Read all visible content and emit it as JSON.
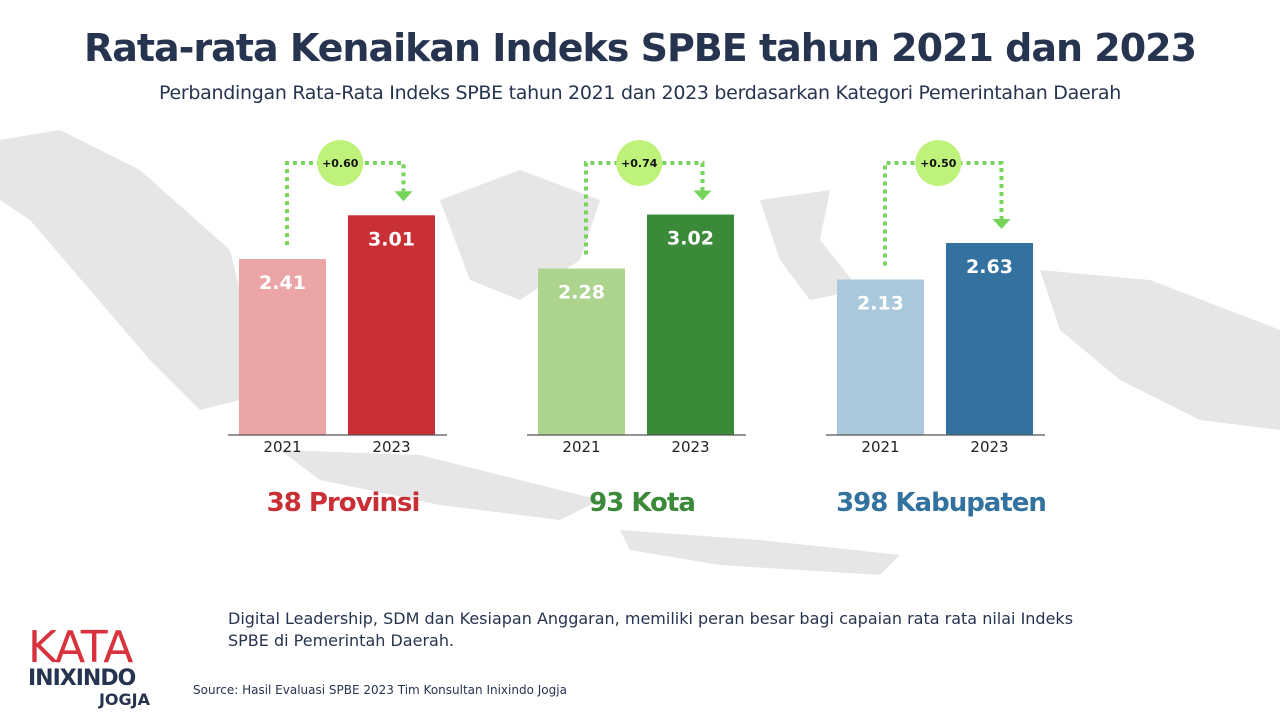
{
  "title": "Rata-rata Kenaikan Indeks SPBE tahun 2021 dan 2023",
  "subtitle": "Perbandingan Rata-Rata Indeks SPBE tahun 2021 dan 2023 berdasarkan Kategori Pemerintahan Daerah",
  "note": "Digital Leadership, SDM dan Kesiapan Anggaran, memiliki peran besar bagi capaian rata rata nilai Indeks SPBE di Pemerintah Daerah.",
  "source": "Source: Hasil Evaluasi SPBE 2023 Tim Konsultan Inixindo Jogja",
  "logo": {
    "line1": "KATA",
    "line2": "INIXINDO",
    "line3": "JOGJA"
  },
  "chart_data": [
    {
      "type": "bar",
      "category_label": "38 Provinsi",
      "categories": [
        "2021",
        "2023"
      ],
      "values": [
        2.41,
        3.01
      ],
      "value_labels": [
        "2.41",
        "3.01"
      ],
      "change": "+0.60",
      "colors": [
        "#eba5a6",
        "#c93035"
      ],
      "label_color": "#c93035"
    },
    {
      "type": "bar",
      "category_label": "93 Kota",
      "categories": [
        "2021",
        "2023"
      ],
      "values": [
        2.28,
        3.02
      ],
      "value_labels": [
        "2.28",
        "3.02"
      ],
      "change": "+0.74",
      "colors": [
        "#acd48f",
        "#3a8a3a"
      ],
      "label_color": "#3a8a3a"
    },
    {
      "type": "bar",
      "category_label": "398 Kabupaten",
      "categories": [
        "2021",
        "2023"
      ],
      "values": [
        2.13,
        2.63
      ],
      "value_labels": [
        "2.13",
        "2.63"
      ],
      "change": "+0.50",
      "colors": [
        "#a9c8dc",
        "#33729f"
      ],
      "label_color": "#33729f"
    }
  ],
  "accent": {
    "badge": "#bff27a",
    "arrow": "#77d45a"
  }
}
